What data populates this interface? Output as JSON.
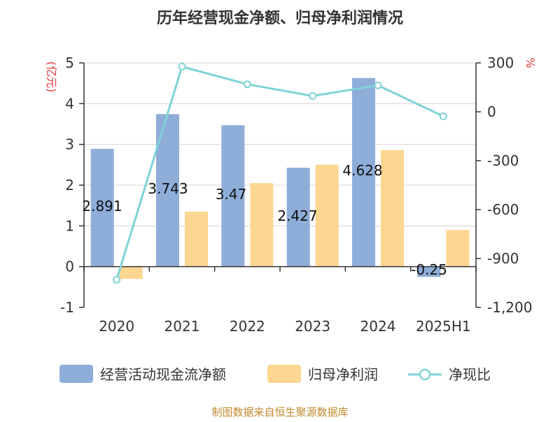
{
  "chart_data": {
    "type": "bar",
    "title": "历年经营现金净额、归母净利润情况",
    "categories": [
      "2020",
      "2021",
      "2022",
      "2023",
      "2024",
      "2025H1"
    ],
    "y_left": {
      "unit": "(亿元)",
      "ylim": [
        -1,
        5
      ],
      "ticks": [
        "-1",
        "0",
        "1",
        "2",
        "3",
        "4",
        "5"
      ]
    },
    "y_right": {
      "unit": "%",
      "ylim": [
        -1200,
        300
      ],
      "ticks": [
        "-1,200",
        "-900",
        "-600",
        "-300",
        "0",
        "300"
      ]
    },
    "series": [
      {
        "name": "经营活动现金流净额",
        "kind": "bar",
        "axis": "left",
        "color": "#8eadd9",
        "values": [
          2.891,
          3.743,
          3.47,
          2.427,
          4.628,
          -0.25
        ],
        "labels": [
          "2.891",
          "3.743",
          "3.47",
          "2.427",
          "4.628",
          "-0.25"
        ]
      },
      {
        "name": "归母净利润",
        "kind": "bar",
        "axis": "left",
        "color": "#fdd692",
        "values": [
          -0.3,
          1.35,
          2.05,
          2.5,
          2.86,
          0.9
        ]
      },
      {
        "name": "净现比",
        "kind": "line",
        "axis": "right",
        "color": "#7fd3d6",
        "values": [
          -1030,
          277,
          169,
          97,
          162,
          -28
        ]
      }
    ],
    "grid": true,
    "legend": "bottom"
  },
  "source": "制图数据来自恒生聚源数据库"
}
